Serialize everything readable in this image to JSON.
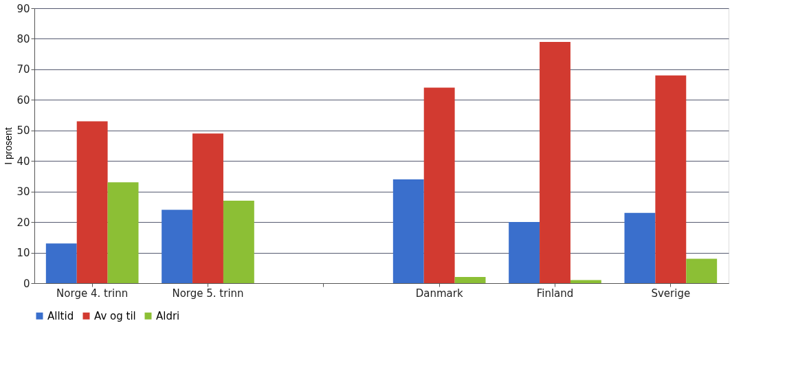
{
  "chart_data": {
    "type": "bar",
    "ylabel": "I prosent",
    "categories": [
      "Norge 4. trinn",
      "Norge 5. trinn",
      null,
      "Danmark",
      "Finland",
      "Sverige"
    ],
    "series": [
      {
        "name": "Alltid",
        "color": "#3a6fcc",
        "values": [
          13,
          24,
          null,
          34,
          20,
          23
        ]
      },
      {
        "name": "Av og til",
        "color": "#d23a30",
        "values": [
          53,
          49,
          null,
          64,
          79,
          68
        ]
      },
      {
        "name": "Aldri",
        "color": "#8cbf35",
        "values": [
          33,
          27,
          null,
          2,
          1,
          8
        ]
      }
    ],
    "ylim": [
      0,
      90
    ],
    "yticks": [
      0,
      10,
      20,
      30,
      40,
      50,
      60,
      70,
      80,
      90
    ],
    "grid": "y",
    "legend": "bottom"
  }
}
